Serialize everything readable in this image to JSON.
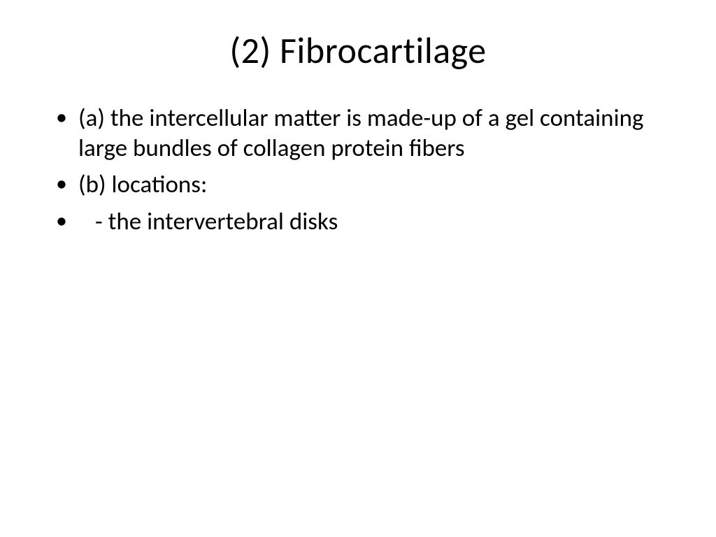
{
  "slide": {
    "title": "(2) Fibrocartilage",
    "bullets": [
      "(a) the intercellular matter is made-up of a gel containing large bundles of collagen protein fibers",
      "(b) locations:",
      "    - the intervertebral disks"
    ]
  },
  "style": {
    "background_color": "#ffffff",
    "text_color": "#000000",
    "title_fontsize": 52,
    "body_fontsize": 35,
    "font_family": "Calibri"
  }
}
